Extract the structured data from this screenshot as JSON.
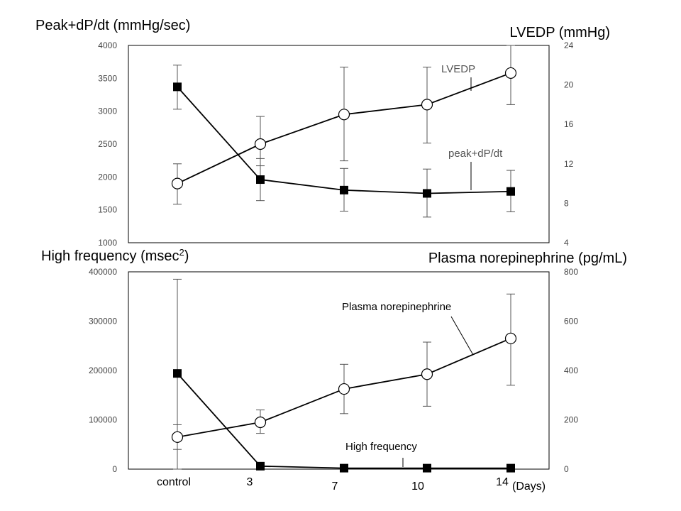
{
  "chart_data": [
    {
      "type": "line",
      "panel": "top",
      "x_categories": [
        "control",
        "3",
        "7",
        "10",
        "14"
      ],
      "ylabel_left": "Peak+dP/dt (mmHg/sec)",
      "ylabel_right": "LVEDP (mmHg)",
      "ylim_left": [
        1000,
        4000
      ],
      "ylim_right": [
        4,
        24
      ],
      "yticks_left": [
        "4000",
        "3500",
        "3000",
        "2500",
        "2000",
        "1500",
        "1000"
      ],
      "yticks_right": [
        "24",
        "20",
        "16",
        "12",
        "8",
        "4"
      ],
      "grid": false,
      "series": [
        {
          "name": "peak+dP/dt",
          "axis": "left",
          "marker": "filled-square",
          "values": [
            3370,
            1960,
            1800,
            1750,
            1780
          ],
          "err_low": [
            3030,
            1640,
            1480,
            1390,
            1470
          ],
          "err_high": [
            3700,
            2280,
            2130,
            2120,
            2100
          ]
        },
        {
          "name": "LVEDP",
          "axis": "right",
          "marker": "open-circle",
          "values": [
            10.0,
            14.0,
            17.0,
            18.0,
            21.2
          ],
          "err_low": [
            7.9,
            11.8,
            12.3,
            14.1,
            18.0
          ],
          "err_high": [
            12.0,
            16.8,
            21.8,
            21.8,
            24.0
          ]
        }
      ]
    },
    {
      "type": "line",
      "panel": "bottom",
      "x_categories": [
        "control",
        "3",
        "7",
        "10",
        "14"
      ],
      "x_unit": "(Days)",
      "ylabel_left_main": "High frequency (msec",
      "ylabel_left_sup": "2",
      "ylabel_left_close": ")",
      "ylabel_right": "Plasma norepinephrine  (pg/mL)",
      "ylim_left": [
        0,
        400000
      ],
      "ylim_right": [
        0,
        800
      ],
      "yticks_left": [
        "400000",
        "300000",
        "200000",
        "100000",
        "0"
      ],
      "yticks_right": [
        "800",
        "600",
        "400",
        "200",
        "0"
      ],
      "grid": false,
      "series": [
        {
          "name": "High frequency",
          "axis": "left",
          "marker": "filled-square",
          "values": [
            194000,
            6000,
            2000,
            2000,
            2000
          ],
          "err_low": [
            0,
            3000,
            500,
            500,
            500
          ],
          "err_high": [
            385000,
            9000,
            3500,
            3500,
            3500
          ]
        },
        {
          "name": "Plasma norepinephrine",
          "axis": "right",
          "marker": "open-circle",
          "values": [
            130,
            190,
            325,
            385,
            530
          ],
          "err_low": [
            80,
            145,
            225,
            255,
            340
          ],
          "err_high": [
            180,
            240,
            425,
            515,
            710
          ]
        }
      ]
    }
  ]
}
